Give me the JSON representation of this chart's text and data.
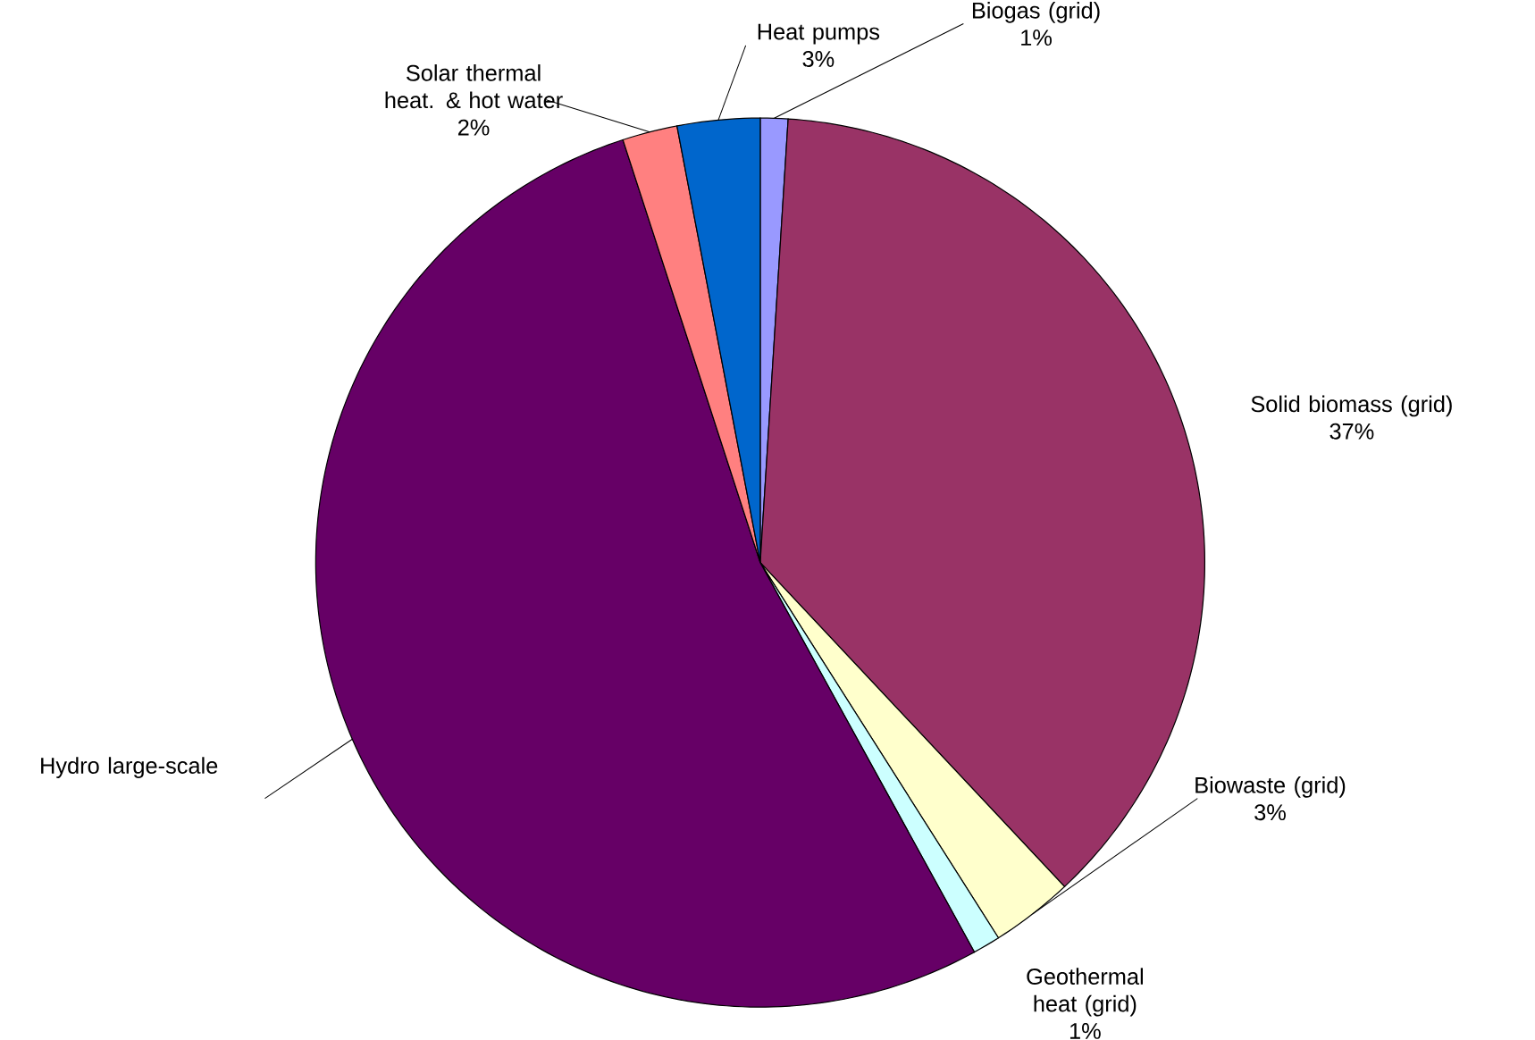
{
  "chart_data": {
    "type": "pie",
    "categories": [
      "Biogas (grid)",
      "Solid biomass (grid)",
      "Biowaste (grid)",
      "Geothermal heat (grid)",
      "Hydro large-scale",
      "Solar thermal heat. & hot water",
      "Heat pumps"
    ],
    "values": [
      1,
      37,
      3,
      1,
      53,
      2,
      3
    ],
    "colors": [
      "#9999ff",
      "#993366",
      "#ffffcc",
      "#ccffff",
      "#660066",
      "#ff8080",
      "#0066cc"
    ],
    "value_labels": [
      "1%",
      "37%",
      "3%",
      "1%",
      null,
      "2%",
      "3%"
    ]
  }
}
